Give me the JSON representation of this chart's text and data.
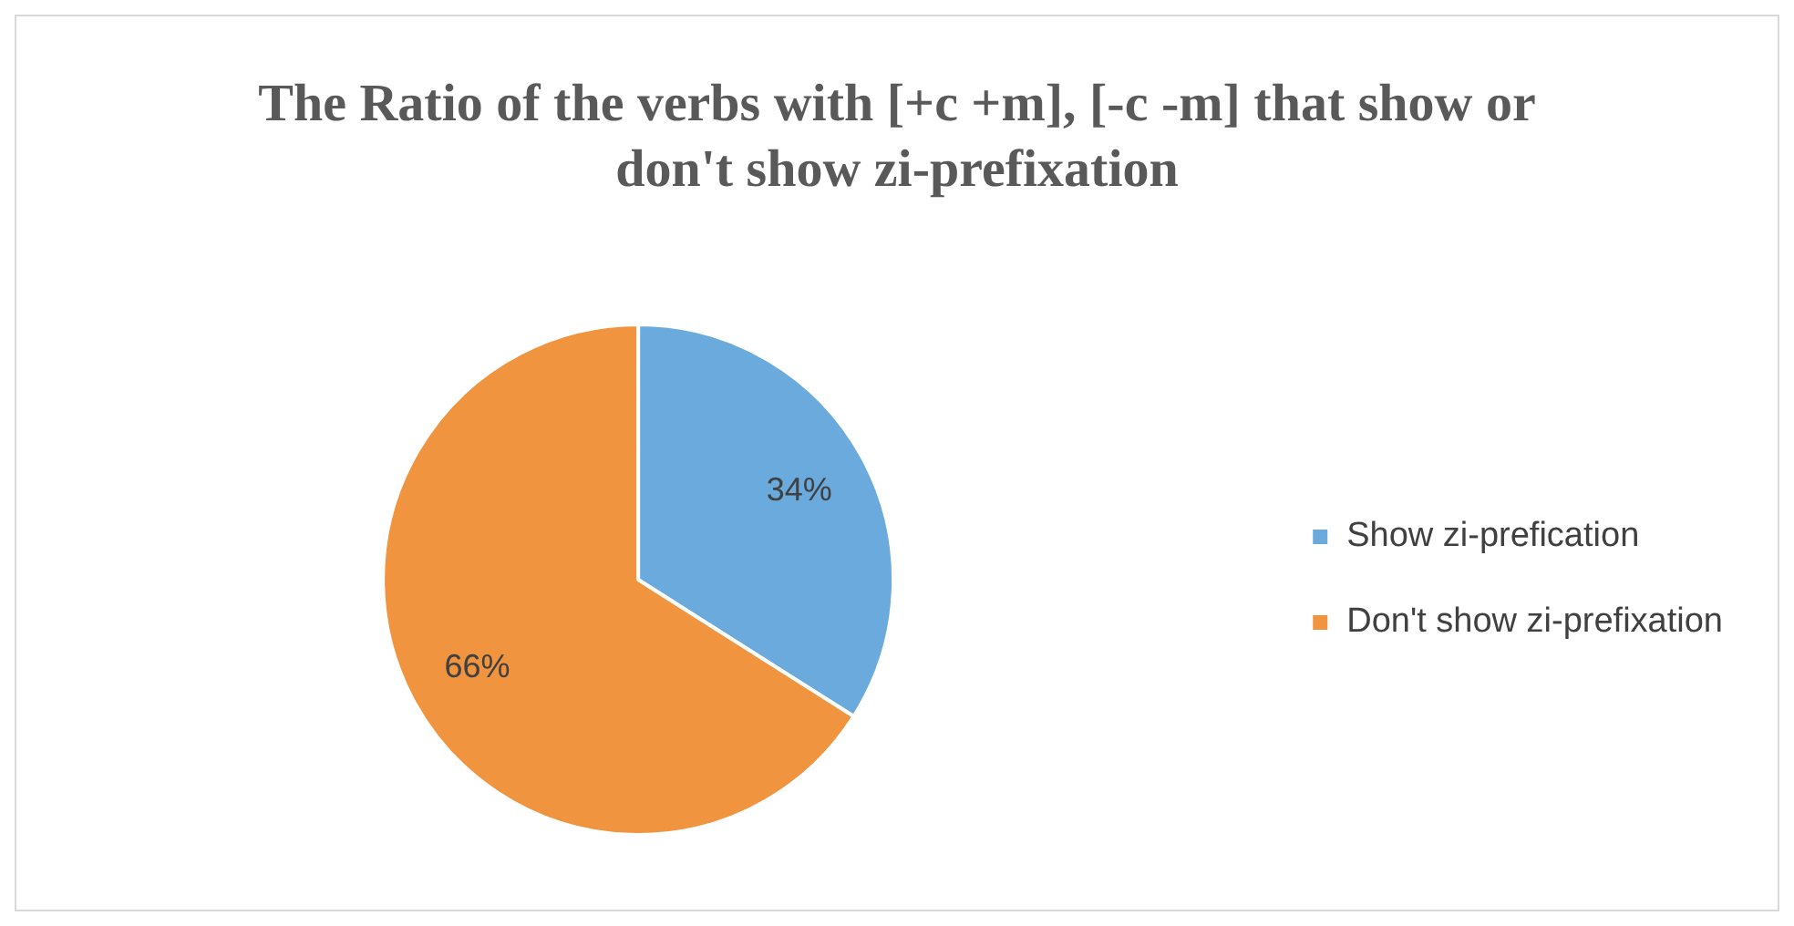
{
  "chart_data": {
    "type": "pie",
    "title": "The Ratio of the verbs with [+c +m], [-c -m] that show or don't show zi-prefixation",
    "categories": [
      "Show zi-prefication",
      "Don't show zi-prefixation"
    ],
    "values": [
      34,
      66
    ],
    "colors": [
      "#6aaadc",
      "#f09440"
    ],
    "value_labels": [
      "34%",
      "66%"
    ],
    "legend": "right"
  }
}
